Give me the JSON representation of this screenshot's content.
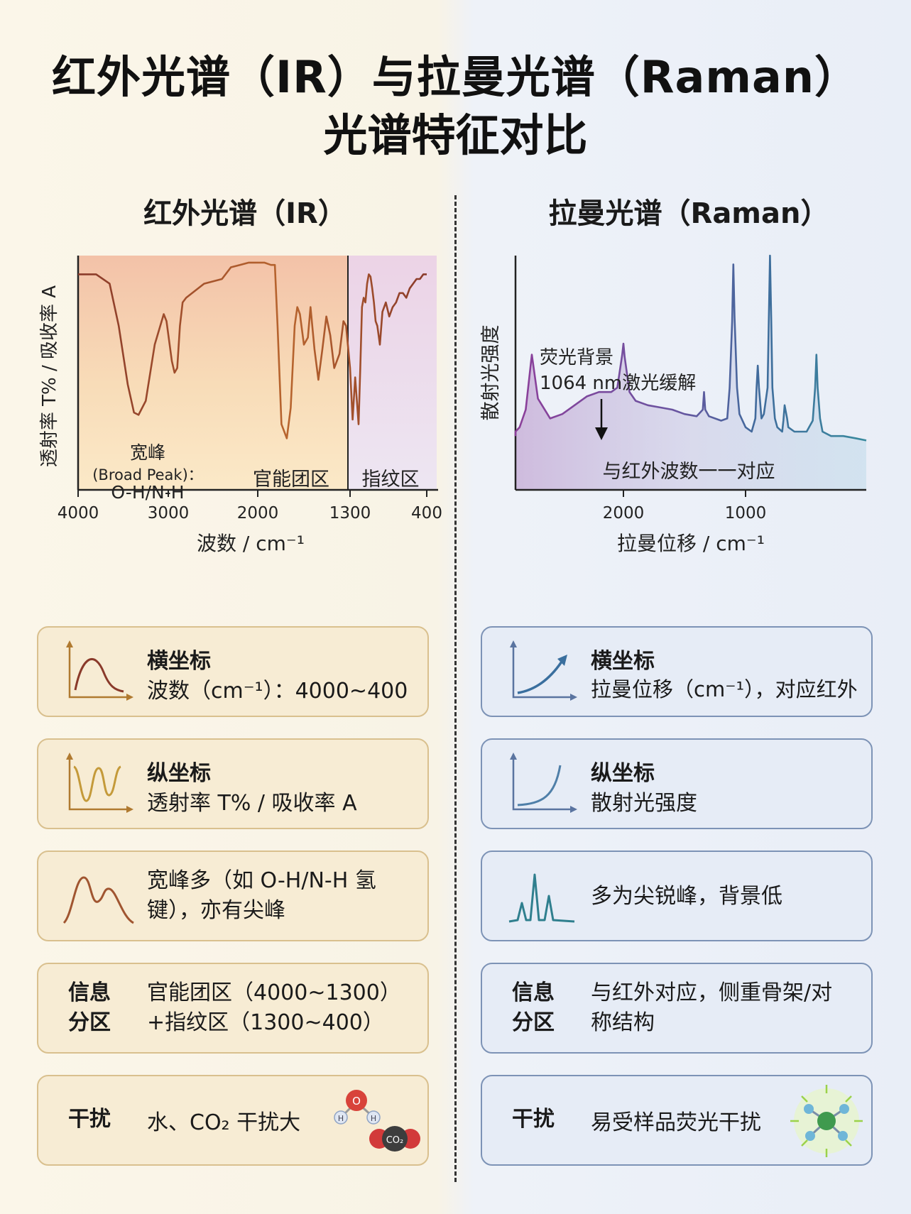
{
  "title": {
    "line1": "红外光谱（IR）与拉曼光谱（Raman）",
    "line2": "光谱特征对比"
  },
  "ir": {
    "heading": "红外光谱（IR）",
    "chart": {
      "ylabel": "透射率 T% / 吸收率 A",
      "xlabel": "波数 / cm⁻¹",
      "xticks": [
        "4000",
        "3000",
        "2000",
        "1300",
        "400"
      ],
      "annotation_broad_1": "宽峰",
      "annotation_broad_2": "(Broad Peak)：",
      "annotation_broad_3": "O-H/N-H",
      "region_functional": "官能团区",
      "region_fingerprint": "指纹区"
    },
    "cards": {
      "x_axis": {
        "label": "横坐标",
        "value": "波数（cm⁻¹）：4000~400"
      },
      "y_axis": {
        "label": "纵坐标",
        "value": "透射率 T% / 吸收率 A"
      },
      "peaks": {
        "line1": "宽峰多（如 O-H/N-H 氢",
        "line2": "键），亦有尖峰"
      },
      "regions": {
        "label1": "信息",
        "label2": "分区",
        "line1": "官能团区（4000~1300）",
        "line2": "+指纹区（1300~400）"
      },
      "interference": {
        "label": "干扰",
        "text": "水、CO₂ 干扰大",
        "icon": "water-co2-molecule-icon"
      }
    }
  },
  "raman": {
    "heading": "拉曼光谱（Raman）",
    "chart": {
      "ylabel": "散射光强度",
      "xlabel": "拉曼位移 / cm⁻¹",
      "xticks": [
        "2000",
        "1000"
      ],
      "annotation_1": "荧光背景",
      "annotation_2": "1064 nm激光缓解",
      "bottom_note": "与红外波数一一对应"
    },
    "cards": {
      "x_axis": {
        "label": "横坐标",
        "value": "拉曼位移（cm⁻¹），对应红外"
      },
      "y_axis": {
        "label": "纵坐标",
        "value": "散射光强度"
      },
      "peaks": {
        "text": "多为尖锐峰，背景低"
      },
      "regions": {
        "label1": "信息",
        "label2": "分区",
        "line1": "与红外对应，侧重骨架/对",
        "line2": "称结构"
      },
      "interference": {
        "label": "干扰",
        "text": "易受样品荧光干扰",
        "icon": "fluorescent-molecule-icon"
      }
    }
  },
  "chart_data": [
    {
      "type": "line",
      "title": "红外光谱（IR）",
      "xlabel": "波数 / cm⁻¹",
      "ylabel": "透射率 T% / 吸收率 A",
      "xlim": [
        4000,
        400
      ],
      "ylim": [
        0,
        100
      ],
      "x": [
        4000,
        3800,
        3650,
        3550,
        3450,
        3380,
        3330,
        3250,
        3150,
        3050,
        3020,
        2960,
        2930,
        2900,
        2870,
        2840,
        2800,
        2600,
        2400,
        2300,
        2200,
        2100,
        2000,
        1950,
        1900,
        1870,
        1850,
        1820,
        1780,
        1750,
        1720,
        1700,
        1680,
        1650,
        1620,
        1600,
        1570,
        1540,
        1510,
        1480,
        1450,
        1420,
        1380,
        1350,
        1330,
        1300,
        1270,
        1240,
        1220,
        1200,
        1180,
        1160,
        1140,
        1120,
        1100,
        1080,
        1060,
        1040,
        1020,
        1000,
        980,
        950,
        920,
        880,
        840,
        800,
        760,
        720,
        680,
        640,
        600,
        560,
        520,
        480,
        440,
        400
      ],
      "y": [
        92,
        92,
        88,
        70,
        45,
        33,
        32,
        38,
        62,
        75,
        72,
        55,
        50,
        52,
        70,
        80,
        82,
        88,
        90,
        95,
        96,
        97,
        97,
        97,
        96,
        96,
        70,
        28,
        22,
        35,
        70,
        78,
        75,
        62,
        65,
        78,
        60,
        47,
        60,
        74,
        66,
        52,
        58,
        72,
        70,
        52,
        30,
        48,
        38,
        28,
        52,
        78,
        82,
        80,
        88,
        92,
        91,
        86,
        80,
        72,
        70,
        62,
        76,
        80,
        74,
        78,
        80,
        84,
        84,
        82,
        86,
        88,
        90,
        90,
        92,
        92
      ],
      "regions": [
        {
          "name": "官能团区",
          "range": [
            4000,
            1300
          ]
        },
        {
          "name": "指纹区",
          "range": [
            1300,
            400
          ]
        }
      ],
      "annotations": [
        {
          "text": "宽峰 (Broad Peak)：O-H/N-H",
          "x": 3330
        }
      ]
    },
    {
      "type": "line",
      "title": "拉曼光谱（Raman）",
      "xlabel": "拉曼位移 / cm⁻¹",
      "ylabel": "散射光强度",
      "xlim": [
        3000,
        0
      ],
      "ylim": [
        0,
        100
      ],
      "x": [
        3000,
        2900,
        2850,
        2800,
        2750,
        2700,
        2600,
        2500,
        2400,
        2300,
        2200,
        2100,
        2050,
        2010,
        2000,
        1990,
        1950,
        1900,
        1800,
        1700,
        1600,
        1500,
        1400,
        1350,
        1340,
        1330,
        1300,
        1200,
        1150,
        1130,
        1110,
        1100,
        1090,
        1070,
        1050,
        1000,
        950,
        920,
        910,
        900,
        890,
        870,
        850,
        820,
        810,
        800,
        790,
        780,
        760,
        740,
        700,
        690,
        680,
        660,
        650,
        600,
        500,
        450,
        430,
        420,
        410,
        390,
        370,
        300,
        200,
        100,
        0
      ],
      "y": [
        18,
        20,
        22,
        30,
        55,
        35,
        26,
        28,
        32,
        36,
        38,
        38,
        40,
        55,
        60,
        54,
        38,
        34,
        32,
        31,
        30,
        28,
        27,
        30,
        38,
        30,
        27,
        25,
        26,
        40,
        70,
        96,
        72,
        40,
        28,
        22,
        20,
        26,
        40,
        50,
        40,
        26,
        28,
        40,
        70,
        100,
        72,
        40,
        26,
        22,
        20,
        25,
        32,
        26,
        22,
        20,
        20,
        25,
        40,
        55,
        40,
        26,
        20,
        18,
        18,
        17,
        16
      ],
      "annotations": [
        {
          "text": "荧光背景 1064 nm激光缓解",
          "x": 2300
        },
        {
          "text": "与红外波数一一对应"
        }
      ]
    }
  ]
}
